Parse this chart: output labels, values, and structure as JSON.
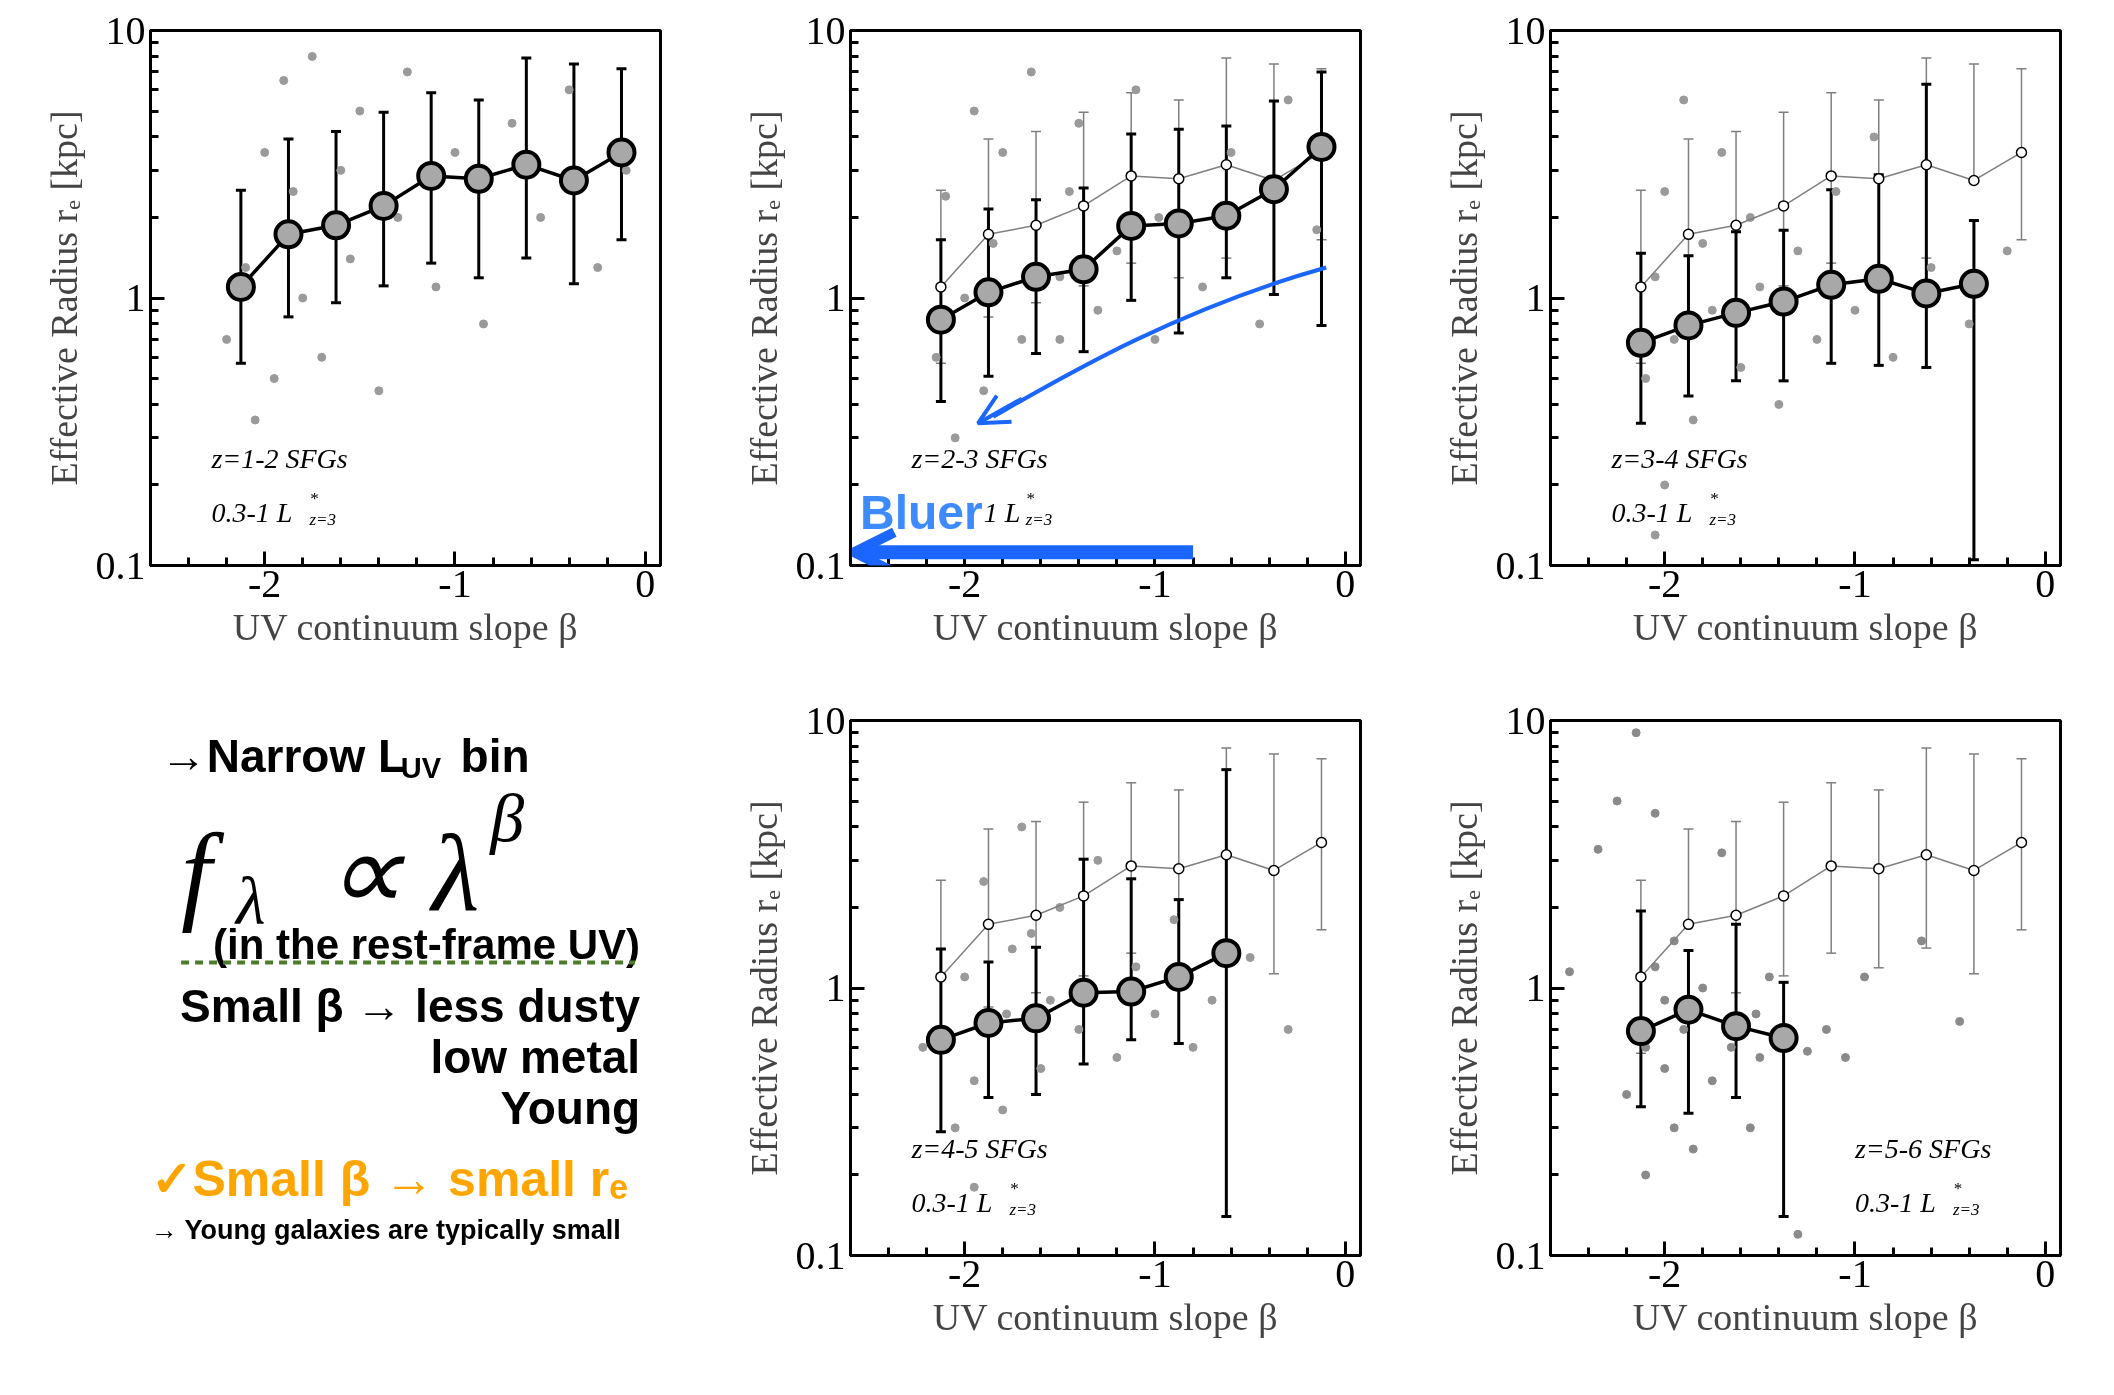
{
  "chart_data": [
    {
      "type": "scatter",
      "xlabel": "UV continuum slope β",
      "ylabel": "Effective Radius rₑ [kpc]",
      "log": "y",
      "xlim": [
        -2.6,
        0.08
      ],
      "ylim": [
        0.1,
        10
      ],
      "xticks": [
        -2,
        -1,
        0
      ],
      "yticks": [
        0.1,
        1,
        10
      ],
      "marker": "circle",
      "annotations": [
        "z=1-2 SFGs",
        "0.3-1 L$^{*}$$_{z=3}$"
      ],
      "series": [
        {
          "type": "scatter",
          "color": "#9a9a9a",
          "x": [
            -2.2,
            -2.1,
            -2.05,
            -2.0,
            -1.95,
            -1.9,
            -1.85,
            -1.8,
            -1.75,
            -1.7,
            -1.6,
            -1.55,
            -1.5,
            -1.4,
            -1.3,
            -1.25,
            -1.1,
            -1.0,
            -0.85,
            -0.7,
            -0.55,
            -0.4,
            -0.25,
            -0.1
          ],
          "values": [
            0.7,
            1.3,
            0.35,
            3.5,
            0.5,
            6.5,
            2.5,
            1.0,
            8.0,
            0.6,
            3.0,
            1.4,
            5.0,
            0.45,
            2.0,
            7.0,
            1.1,
            3.5,
            0.8,
            4.5,
            2.0,
            6.0,
            1.3,
            3.0
          ]
        },
        {
          "type": "line",
          "color": "#a8a8a8",
          "x": [
            -2.125,
            -1.875,
            -1.625,
            -1.375,
            -1.125,
            -0.875,
            -0.625,
            -0.375,
            -0.125
          ],
          "values": [
            1.1,
            1.73,
            1.87,
            2.21,
            2.86,
            2.79,
            3.15,
            2.75,
            3.5
          ],
          "errors": [
            [
              0.57,
              2.53
            ],
            [
              0.85,
              3.93
            ],
            [
              0.96,
              4.19
            ],
            [
              1.11,
              4.95
            ],
            [
              1.35,
              5.85
            ],
            [
              1.19,
              5.5
            ],
            [
              1.41,
              7.9
            ],
            [
              1.13,
              7.5
            ],
            [
              1.65,
              7.2
            ]
          ]
        }
      ]
    },
    {
      "type": "scatter",
      "xlabel": "UV continuum slope β",
      "ylabel": "Effective Radius rₑ [kpc]",
      "log": "y",
      "xlim": [
        -2.6,
        0.08
      ],
      "ylim": [
        0.1,
        10
      ],
      "xticks": [
        -2,
        -1,
        0
      ],
      "yticks": [
        0.1,
        1,
        10
      ],
      "marker": "circle",
      "annotations": [
        "z=2-3 SFGs",
        "1 L$^{*}$$_{z=3}$",
        "Bluer"
      ],
      "series": [
        {
          "type": "scatter",
          "color": "#9a9a9a",
          "x": [
            -2.15,
            -2.1,
            -2.05,
            -2.0,
            -1.95,
            -1.9,
            -1.85,
            -1.8,
            -1.7,
            -1.65,
            -1.5,
            -1.5,
            -1.45,
            -1.4,
            -1.3,
            -1.2,
            -1.1,
            -1.0,
            -0.98,
            -0.75,
            -0.6,
            -0.45,
            -0.3,
            -0.15
          ],
          "values": [
            0.6,
            2.4,
            0.3,
            1.0,
            5.0,
            0.45,
            1.6,
            3.5,
            0.7,
            7.0,
            1.2,
            0.7,
            2.5,
            4.5,
            0.9,
            1.5,
            6.0,
            0.7,
            2.0,
            1.1,
            3.5,
            0.8,
            5.5,
            1.8
          ]
        },
        {
          "type": "line",
          "color": "#7f7f7f",
          "x": [
            -2.125,
            -1.875,
            -1.625,
            -1.375,
            -1.125,
            -0.875,
            -0.625,
            -0.375,
            -0.125
          ],
          "values": [
            1.1,
            1.73,
            1.87,
            2.21,
            2.86,
            2.79,
            3.15,
            2.75,
            3.5
          ],
          "errors": [
            [
              0.57,
              2.53
            ],
            [
              0.85,
              3.93
            ],
            [
              0.96,
              4.19
            ],
            [
              1.11,
              4.95
            ],
            [
              1.35,
              5.85
            ],
            [
              1.19,
              5.5
            ],
            [
              1.41,
              7.9
            ],
            [
              1.13,
              7.5
            ],
            [
              1.65,
              7.2
            ]
          ]
        },
        {
          "type": "line",
          "color": "#a8a8a8",
          "x": [
            -2.125,
            -1.875,
            -1.625,
            -1.375,
            -1.125,
            -0.875,
            -0.625,
            -0.375,
            -0.125
          ],
          "values": [
            0.83,
            1.05,
            1.2,
            1.28,
            1.86,
            1.9,
            2.03,
            2.55,
            3.67
          ],
          "errors": [
            [
              0.41,
              1.65
            ],
            [
              0.51,
              2.15
            ],
            [
              0.62,
              2.33
            ],
            [
              0.63,
              2.58
            ],
            [
              0.98,
              4.1
            ],
            [
              0.74,
              4.27
            ],
            [
              1.19,
              4.4
            ],
            [
              1.03,
              5.45
            ],
            [
              0.79,
              7.0
            ]
          ]
        }
      ]
    },
    {
      "type": "scatter",
      "xlabel": "UV continuum slope β",
      "ylabel": "Effective Radius rₑ [kpc]",
      "log": "y",
      "xlim": [
        -2.6,
        0.08
      ],
      "ylim": [
        0.1,
        10
      ],
      "xticks": [
        -2,
        -1,
        0
      ],
      "yticks": [
        0.1,
        1,
        10
      ],
      "marker": "circle",
      "annotations": [
        "z=3-4 SFGs",
        "0.3-1 L$^{*}$$_{z=3}$"
      ],
      "series": [
        {
          "type": "scatter",
          "color": "#9a9a9a",
          "x": [
            -2.1,
            -2.05,
            -2.0,
            -2.0,
            -1.95,
            -1.9,
            -1.85,
            -1.8,
            -1.75,
            -1.7,
            -1.6,
            -1.55,
            -1.5,
            -1.4,
            -1.3,
            -1.2,
            -1.1,
            -1.0,
            -0.9,
            -0.8,
            -0.6,
            -0.4,
            -0.2,
            -2.05
          ],
          "values": [
            0.5,
            1.2,
            0.2,
            2.5,
            0.7,
            5.5,
            0.35,
            1.6,
            0.9,
            3.5,
            0.55,
            2.0,
            1.1,
            0.4,
            1.5,
            0.7,
            2.5,
            0.9,
            4.0,
            0.6,
            1.3,
            0.8,
            1.5,
            0.13
          ]
        },
        {
          "type": "line",
          "color": "#7f7f7f",
          "x": [
            -2.125,
            -1.875,
            -1.625,
            -1.375,
            -1.125,
            -0.875,
            -0.625,
            -0.375,
            -0.125
          ],
          "values": [
            1.1,
            1.73,
            1.87,
            2.21,
            2.86,
            2.79,
            3.15,
            2.75,
            3.5
          ],
          "errors": [
            [
              0.57,
              2.53
            ],
            [
              0.85,
              3.93
            ],
            [
              0.96,
              4.19
            ],
            [
              1.11,
              4.95
            ],
            [
              1.35,
              5.85
            ],
            [
              2.79,
              5.5
            ],
            [
              1.41,
              7.9
            ],
            [
              2.75,
              7.5
            ],
            [
              1.65,
              7.2
            ]
          ]
        },
        {
          "type": "line",
          "color": "#a8a8a8",
          "x": [
            -2.125,
            -1.875,
            -1.625,
            -1.375,
            -1.125,
            -0.875,
            -0.625,
            -0.375
          ],
          "values": [
            0.68,
            0.79,
            0.88,
            0.97,
            1.12,
            1.18,
            1.04,
            1.13
          ],
          "errors": [
            [
              0.34,
              1.47
            ],
            [
              0.43,
              1.44
            ],
            [
              0.49,
              1.77
            ],
            [
              0.49,
              1.79
            ],
            [
              0.57,
              2.54
            ],
            [
              0.56,
              2.89
            ],
            [
              0.55,
              6.3
            ],
            [
              0.105,
              1.95
            ]
          ]
        }
      ]
    },
    {
      "type": "other",
      "annotations": [
        "→Narrow L$_{UV}$ bin",
        "f$_{λ}$ ∝ λ$^{β}$",
        "(in the rest-frame UV)",
        "Small β → less dusty",
        "low metal",
        "Young",
        "✓Small β → small rₑ",
        "→ Young galaxies are typically small"
      ]
    },
    {
      "type": "scatter",
      "xlabel": "UV continuum slope β",
      "ylabel": "Effective Radius rₑ [kpc]",
      "log": "y",
      "xlim": [
        -2.6,
        0.08
      ],
      "ylim": [
        0.1,
        10
      ],
      "xticks": [
        -2,
        -1,
        0
      ],
      "yticks": [
        0.1,
        1,
        10
      ],
      "marker": "circle",
      "annotations": [
        "z=4-5 SFGs",
        "0.3-1 L$^{*}$$_{z=3}$"
      ],
      "series": [
        {
          "type": "scatter",
          "color": "#9a9a9a",
          "x": [
            -2.22,
            -2.05,
            -2.0,
            -1.95,
            -1.9,
            -1.78,
            -1.8,
            -1.75,
            -1.7,
            -1.6,
            -1.55,
            -1.5,
            -1.4,
            -1.3,
            -1.2,
            -1.1,
            -1.0,
            -0.9,
            -0.8,
            -0.7,
            -0.5,
            -0.3,
            -1.95,
            -1.65
          ],
          "values": [
            0.6,
            0.3,
            1.1,
            0.45,
            2.5,
            0.8,
            0.35,
            1.4,
            4.0,
            0.5,
            0.9,
            2.0,
            0.7,
            3.0,
            0.55,
            1.2,
            0.8,
            1.8,
            0.6,
            0.9,
            1.3,
            0.7,
            0.18,
            1.6
          ]
        },
        {
          "type": "line",
          "color": "#7f7f7f",
          "x": [
            -2.125,
            -1.875,
            -1.625,
            -1.375,
            -1.125,
            -0.875,
            -0.625,
            -0.375,
            -0.125
          ],
          "values": [
            1.1,
            1.73,
            1.87,
            2.21,
            2.86,
            2.79,
            3.15,
            2.75,
            3.5
          ],
          "errors": [
            [
              0.57,
              2.53
            ],
            [
              0.85,
              3.93
            ],
            [
              0.96,
              4.19
            ],
            [
              1.11,
              4.95
            ],
            [
              1.35,
              5.85
            ],
            [
              1.19,
              5.5
            ],
            [
              3.15,
              7.9
            ],
            [
              1.13,
              7.5
            ],
            [
              1.65,
              7.2
            ]
          ]
        },
        {
          "type": "line",
          "color": "#a8a8a8",
          "x": [
            -2.125,
            -1.875,
            -1.625,
            -1.375,
            -1.125,
            -0.875,
            -0.625
          ],
          "values": [
            0.64,
            0.74,
            0.77,
            0.96,
            0.97,
            1.1,
            1.35
          ],
          "errors": [
            [
              0.29,
              1.4
            ],
            [
              0.39,
              1.25
            ],
            [
              0.4,
              1.42
            ],
            [
              0.52,
              3.03
            ],
            [
              0.64,
              2.56
            ],
            [
              0.62,
              2.14
            ],
            [
              0.14,
              6.55
            ]
          ]
        }
      ]
    },
    {
      "type": "scatter",
      "xlabel": "UV continuum slope β",
      "ylabel": "Effective Radius rₑ [kpc]",
      "log": "y",
      "xlim": [
        -2.6,
        0.08
      ],
      "ylim": [
        0.1,
        10
      ],
      "xticks": [
        -2,
        -1,
        0
      ],
      "yticks": [
        0.1,
        1,
        10
      ],
      "marker": "circle",
      "annotations": [
        "z=5-6 SFGs",
        "0.3-1 L$^{*}$$_{z=3}$"
      ],
      "series": [
        {
          "type": "scatter",
          "color": "#8a8a8a",
          "x": [
            -2.5,
            -2.35,
            -2.25,
            -2.2,
            -2.15,
            -2.1,
            -2.05,
            -2.05,
            -2.0,
            -2.0,
            -1.95,
            -1.95,
            -1.9,
            -1.85,
            -1.8,
            -1.75,
            -1.7,
            -1.65,
            -1.52,
            -1.55,
            -1.5,
            -1.45,
            -1.25,
            -1.3,
            -1.15,
            -1.05,
            -0.95,
            -0.65,
            -0.45,
            -2.1
          ],
          "values": [
            1.15,
            3.3,
            5.0,
            0.4,
            9.0,
            0.6,
            4.5,
            1.2,
            0.5,
            0.9,
            0.3,
            1.5,
            0.7,
            0.25,
            1.0,
            0.45,
            3.2,
            0.6,
            0.8,
            0.3,
            0.55,
            1.1,
            0.58,
            0.12,
            0.7,
            0.55,
            1.1,
            1.5,
            0.75,
            0.2
          ]
        },
        {
          "type": "line",
          "color": "#7f7f7f",
          "x": [
            -2.125,
            -1.875,
            -1.625,
            -1.375,
            -1.125,
            -0.875,
            -0.625,
            -0.375,
            -0.125
          ],
          "values": [
            1.1,
            1.73,
            1.87,
            2.21,
            2.86,
            2.79,
            3.15,
            2.75,
            3.5
          ],
          "errors": [
            [
              0.57,
              2.53
            ],
            [
              1.73,
              3.93
            ],
            [
              0.96,
              4.19
            ],
            [
              1.11,
              4.95
            ],
            [
              1.35,
              5.85
            ],
            [
              1.19,
              5.5
            ],
            [
              1.41,
              7.9
            ],
            [
              1.13,
              7.5
            ],
            [
              1.65,
              7.2
            ]
          ]
        },
        {
          "type": "line",
          "color": "#a8a8a8",
          "x": [
            -2.125,
            -1.875,
            -1.625,
            -1.375
          ],
          "values": [
            0.69,
            0.83,
            0.72,
            0.65
          ],
          "errors": [
            [
              0.36,
              1.94
            ],
            [
              0.34,
              1.38
            ],
            [
              0.39,
              1.73
            ],
            [
              0.14,
              1.05
            ]
          ]
        }
      ]
    }
  ]
}
